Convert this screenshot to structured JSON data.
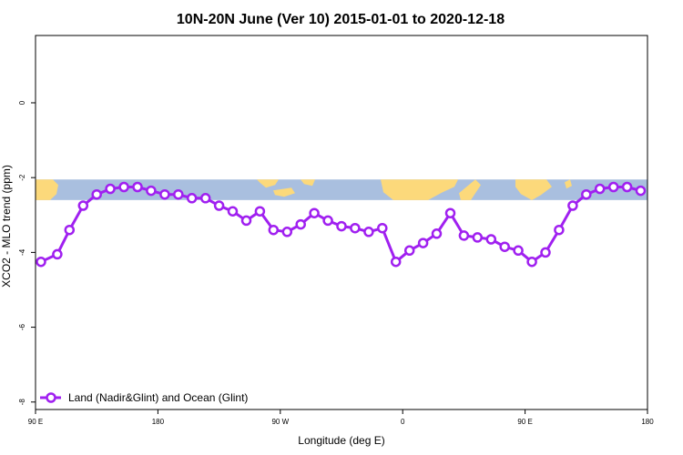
{
  "chart_data": {
    "type": "line",
    "title": "10N-20N June (Ver 10)   2015-01-01 to 2020-12-18",
    "xlabel": "Longitude (deg E)",
    "ylabel": "XCO2 - MLO trend (ppm)",
    "x_ticks": [
      {
        "value": 90,
        "label": "90 E"
      },
      {
        "value": 180,
        "label": "180"
      },
      {
        "value": 270,
        "label": "90 W"
      },
      {
        "value": 360,
        "label": "0"
      },
      {
        "value": 450,
        "label": "90 E"
      },
      {
        "value": 540,
        "label": "180"
      }
    ],
    "y_ticks": [
      {
        "value": -8,
        "label": "-8"
      },
      {
        "value": -6,
        "label": "-6"
      },
      {
        "value": -4,
        "label": "-4"
      },
      {
        "value": -2,
        "label": "-2"
      },
      {
        "value": 0,
        "label": "0"
      }
    ],
    "xlim": [
      90,
      540
    ],
    "ylim": [
      -8.2,
      1.8
    ],
    "legend_position": "bottom-left",
    "series_color": "#a020f0",
    "map_strip": {
      "y_top": -2.05,
      "y_bottom": -2.6,
      "ocean_color": "#a9bfdf",
      "land_color": "#fcd97b"
    },
    "series": [
      {
        "name": "Land (Nadir&Glint) and Ocean (Glint)",
        "x": [
          94,
          106,
          115,
          125,
          135,
          145,
          155,
          165,
          175,
          185,
          195,
          205,
          215,
          225,
          235,
          245,
          255,
          265,
          275,
          285,
          295,
          305,
          315,
          325,
          335,
          345,
          355,
          365,
          375,
          385,
          395,
          405,
          415,
          425,
          435,
          445,
          455,
          465,
          475,
          485,
          495,
          505,
          515,
          525,
          535
        ],
        "y": [
          -4.25,
          -4.05,
          -3.4,
          -2.75,
          -2.45,
          -2.3,
          -2.25,
          -2.25,
          -2.35,
          -2.45,
          -2.45,
          -2.55,
          -2.55,
          -2.75,
          -2.9,
          -3.15,
          -2.9,
          -3.4,
          -3.45,
          -3.25,
          -2.95,
          -3.15,
          -3.3,
          -3.35,
          -3.45,
          -3.35,
          -4.25,
          -3.95,
          -3.75,
          -3.5,
          -2.95,
          -3.55,
          -3.6,
          -3.65,
          -3.85,
          -3.95,
          -4.25,
          -4.0,
          -3.4,
          -2.75,
          -2.45,
          -2.3,
          -2.25,
          -2.25,
          -2.35
        ]
      }
    ]
  }
}
